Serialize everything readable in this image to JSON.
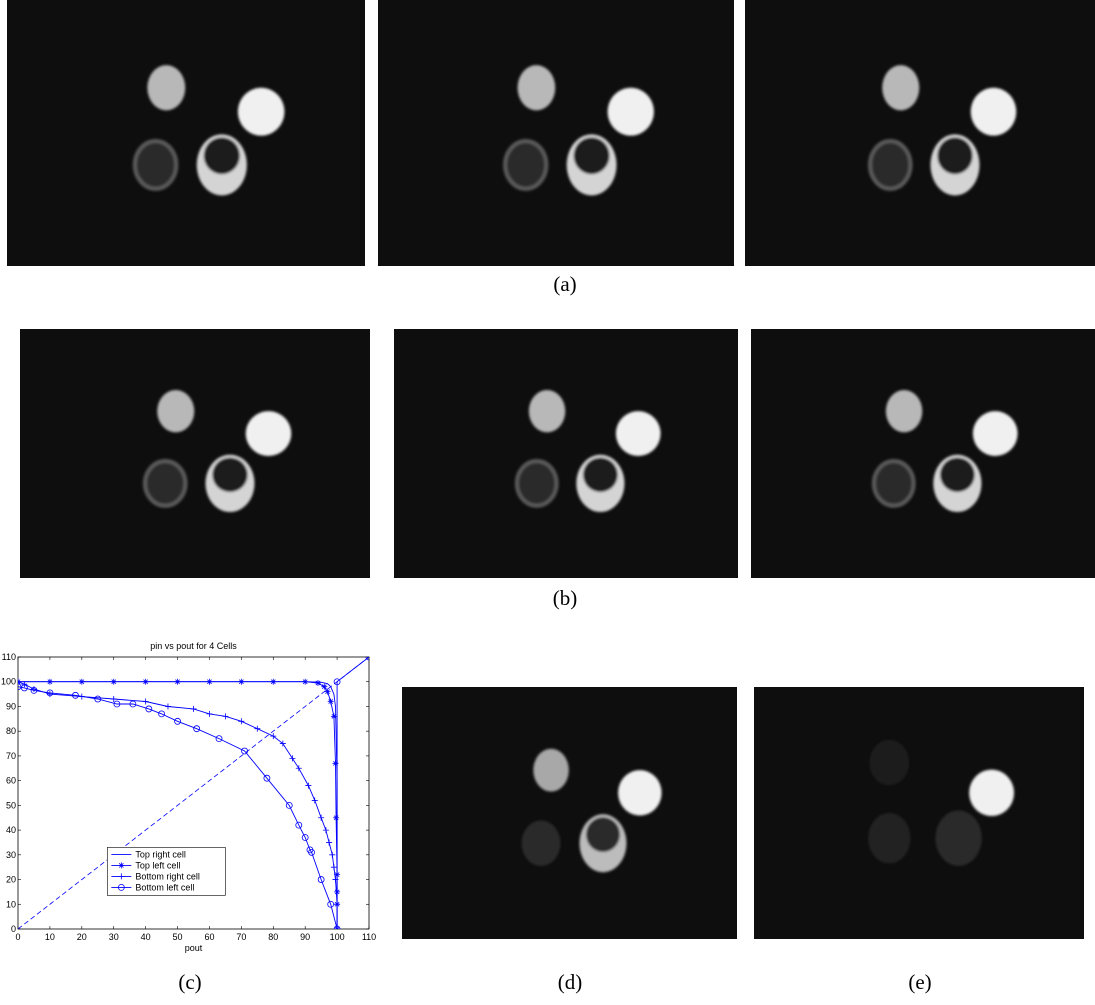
{
  "captions": {
    "a": "(a)",
    "b": "(b)",
    "c": "(c)",
    "d": "(d)",
    "e": "(e)"
  },
  "colors": {
    "series": "#0000ff",
    "background": "#0e0e0e",
    "cell": "#d8d8d8"
  },
  "chart_data": {
    "type": "line",
    "title": "pin vs  pout for 4 Cells",
    "xlabel": "pout",
    "ylabel": "",
    "xlim": [
      0,
      110
    ],
    "ylim": [
      0,
      110
    ],
    "xticks": [
      "0",
      "10",
      "20",
      "30",
      "40",
      "50",
      "60",
      "70",
      "80",
      "90",
      "100",
      "110"
    ],
    "yticks": [
      "0",
      "10",
      "20",
      "30",
      "40",
      "50",
      "60",
      "70",
      "80",
      "90",
      "100",
      "110"
    ],
    "grid": false,
    "legend_position": "bottom-center",
    "diagonal": {
      "style": "dashed",
      "from": [
        0,
        0
      ],
      "to": [
        110,
        110
      ]
    },
    "series": [
      {
        "name": "Top right cell",
        "marker": "none",
        "points": [
          [
            0,
            100
          ],
          [
            20,
            100
          ],
          [
            40,
            100
          ],
          [
            60,
            100
          ],
          [
            80,
            100
          ],
          [
            90,
            100
          ],
          [
            95,
            99.8
          ],
          [
            97,
            99.2
          ],
          [
            98,
            98
          ],
          [
            99,
            95
          ],
          [
            99.5,
            90
          ],
          [
            100,
            60
          ],
          [
            100,
            20
          ],
          [
            100,
            0
          ]
        ]
      },
      {
        "name": "Top left cell",
        "marker": "star",
        "points": [
          [
            0,
            100
          ],
          [
            10,
            100
          ],
          [
            20,
            100
          ],
          [
            30,
            100
          ],
          [
            40,
            100
          ],
          [
            50,
            100
          ],
          [
            60,
            100
          ],
          [
            70,
            100
          ],
          [
            80,
            100
          ],
          [
            90,
            100
          ],
          [
            94,
            99.5
          ],
          [
            96,
            98
          ],
          [
            97,
            96
          ],
          [
            98,
            92
          ],
          [
            99,
            86
          ],
          [
            99.5,
            67
          ],
          [
            99.7,
            45
          ],
          [
            100,
            22
          ],
          [
            100,
            15
          ],
          [
            100,
            10
          ],
          [
            100,
            0
          ]
        ]
      },
      {
        "name": "Bottom right cell",
        "marker": "plus",
        "points": [
          [
            0,
            100
          ],
          [
            2,
            99
          ],
          [
            5,
            97
          ],
          [
            10,
            95
          ],
          [
            20,
            94
          ],
          [
            30,
            93
          ],
          [
            40,
            92
          ],
          [
            47,
            90
          ],
          [
            55,
            89
          ],
          [
            60,
            87
          ],
          [
            65,
            86
          ],
          [
            70,
            84
          ],
          [
            75,
            81
          ],
          [
            80,
            78
          ],
          [
            83,
            75
          ],
          [
            86,
            69
          ],
          [
            88,
            65
          ],
          [
            91,
            58
          ],
          [
            93,
            52
          ],
          [
            95,
            45
          ],
          [
            96.5,
            40
          ],
          [
            97.5,
            35
          ],
          [
            98.5,
            30
          ],
          [
            99,
            25
          ],
          [
            99.5,
            20
          ],
          [
            100,
            10
          ],
          [
            100,
            0
          ]
        ]
      },
      {
        "name": "Bottom left cell",
        "marker": "circle",
        "points": [
          [
            0,
            98
          ],
          [
            2,
            97.5
          ],
          [
            5,
            96.5
          ],
          [
            10,
            95.5
          ],
          [
            18,
            94.5
          ],
          [
            25,
            93
          ],
          [
            31,
            91
          ],
          [
            36,
            91
          ],
          [
            41,
            89
          ],
          [
            45,
            87
          ],
          [
            50,
            84
          ],
          [
            56,
            81
          ],
          [
            63,
            77
          ],
          [
            71,
            72
          ],
          [
            78,
            61
          ],
          [
            85,
            50
          ],
          [
            88,
            42
          ],
          [
            90,
            37
          ],
          [
            91.5,
            32
          ],
          [
            92,
            31
          ],
          [
            95,
            20
          ],
          [
            98,
            10
          ],
          [
            100,
            0
          ],
          [
            100,
            100
          ],
          [
            110,
            110
          ]
        ]
      }
    ]
  }
}
